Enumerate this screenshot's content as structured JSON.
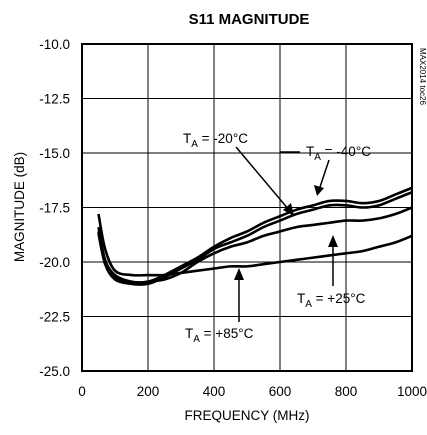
{
  "chart_data": {
    "type": "line",
    "title": "S11 MAGNITUDE",
    "xlabel": "FREQUENCY (MHz)",
    "ylabel": "MAGNITUDE (dB)",
    "xlim": [
      0,
      1000
    ],
    "ylim": [
      -25.0,
      -10.0
    ],
    "x_ticks": [
      "0",
      "200",
      "400",
      "600",
      "800",
      "1000"
    ],
    "y_ticks": [
      "-10.0",
      "-12.5",
      "-15.0",
      "-17.5",
      "-20.0",
      "-22.5",
      "-25.0"
    ],
    "grid": true,
    "legend": "none",
    "figure_code": "MAX2014 toc26",
    "series": [
      {
        "name": "TA = -40°C",
        "x": [
          50,
          70,
          100,
          150,
          200,
          250,
          300,
          350,
          400,
          450,
          500,
          550,
          600,
          650,
          700,
          750,
          800,
          850,
          900,
          950,
          1000
        ],
        "y": [
          -18.4,
          -19.9,
          -20.6,
          -20.9,
          -20.9,
          -20.6,
          -20.2,
          -19.8,
          -19.3,
          -18.9,
          -18.6,
          -18.2,
          -17.9,
          -17.6,
          -17.4,
          -17.2,
          -17.2,
          -17.3,
          -17.2,
          -16.9,
          -16.6
        ]
      },
      {
        "name": "TA = -20°C",
        "x": [
          50,
          70,
          100,
          150,
          200,
          250,
          300,
          350,
          400,
          450,
          500,
          550,
          600,
          650,
          700,
          750,
          800,
          850,
          900,
          950,
          1000
        ],
        "y": [
          -18.6,
          -20.0,
          -20.7,
          -21.0,
          -21.0,
          -20.7,
          -20.3,
          -19.9,
          -19.4,
          -19.1,
          -18.8,
          -18.4,
          -18.1,
          -17.8,
          -17.6,
          -17.4,
          -17.4,
          -17.5,
          -17.4,
          -17.1,
          -16.8
        ]
      },
      {
        "name": "TA = +25°C",
        "x": [
          50,
          70,
          100,
          150,
          200,
          250,
          300,
          350,
          400,
          450,
          500,
          550,
          600,
          650,
          700,
          750,
          800,
          850,
          900,
          950,
          1000
        ],
        "y": [
          -18.7,
          -20.1,
          -20.8,
          -21.0,
          -20.9,
          -20.8,
          -20.5,
          -20.0,
          -19.6,
          -19.3,
          -19.1,
          -18.8,
          -18.6,
          -18.4,
          -18.3,
          -18.2,
          -18.1,
          -18.1,
          -18.0,
          -17.8,
          -17.5
        ]
      },
      {
        "name": "TA = +85°C",
        "x": [
          50,
          70,
          100,
          150,
          200,
          250,
          300,
          350,
          400,
          450,
          500,
          550,
          600,
          650,
          700,
          750,
          800,
          850,
          900,
          950,
          1000
        ],
        "y": [
          -17.8,
          -19.4,
          -20.4,
          -20.6,
          -20.6,
          -20.6,
          -20.5,
          -20.4,
          -20.3,
          -20.2,
          -20.2,
          -20.1,
          -20.0,
          -19.9,
          -19.8,
          -19.7,
          -19.6,
          -19.5,
          -19.3,
          -19.1,
          -18.8
        ]
      }
    ],
    "annotations": [
      {
        "main": "T",
        "sub": "A",
        "rest": " = -20°C"
      },
      {
        "main": "T",
        "sub": "A",
        "rest": " = -40°C"
      },
      {
        "main": "T",
        "sub": "A",
        "rest": " = +25°C"
      },
      {
        "main": "T",
        "sub": "A",
        "rest": " = +85°C"
      }
    ]
  }
}
